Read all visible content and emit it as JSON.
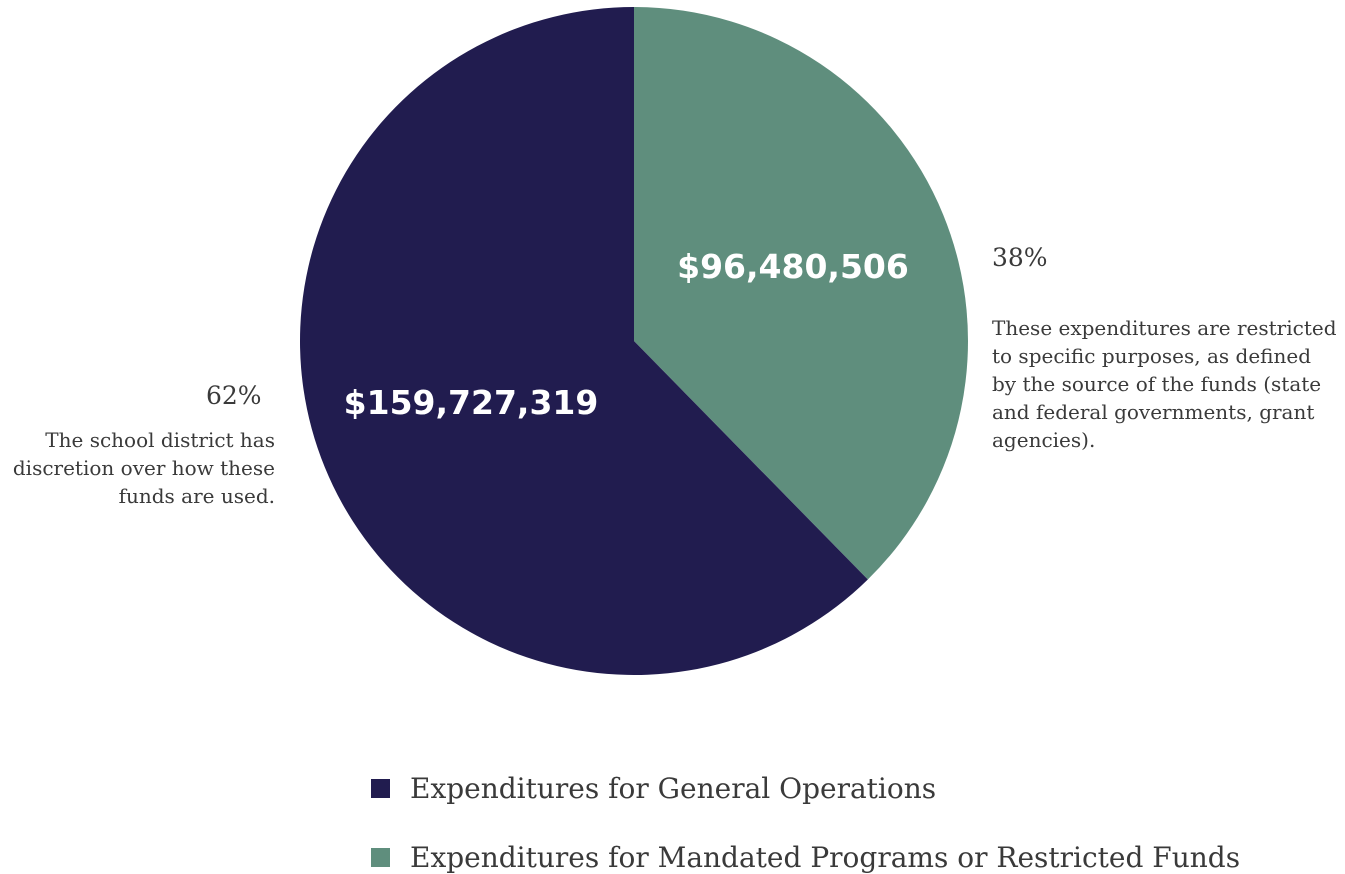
{
  "chart_data": {
    "type": "pie",
    "slices": [
      {
        "name": "Expenditures for Mandated Programs or Restricted Funds",
        "value": 96480506,
        "value_label": "$96,480,506",
        "percent_label": "38%",
        "note": "These expenditures are restricted to specific purposes, as defined by the source of the funds (state and federal governments, grant agencies).",
        "color": "#5f8e7d"
      },
      {
        "name": "Expenditures for General Operations",
        "value": 159727319,
        "value_label": "$159,727,319",
        "percent_label": "62%",
        "note": "The school district has discretion over how these funds are used.",
        "color": "#211c4f"
      }
    ],
    "legend": [
      {
        "label": "Expenditures for General Operations",
        "color": "#211c4f"
      },
      {
        "label": "Expenditures for Mandated Programs or Restricted Funds",
        "color": "#5f8e7d"
      }
    ],
    "legend_position": "bottom-center"
  }
}
